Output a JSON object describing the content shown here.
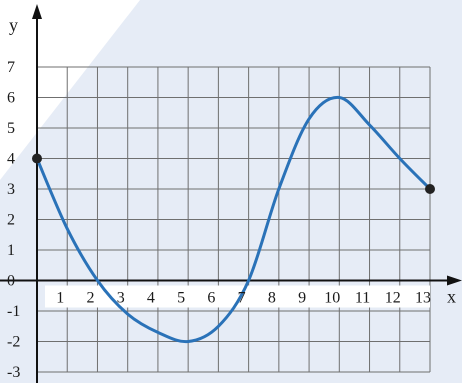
{
  "chart_data": {
    "type": "line",
    "xlabel": "x",
    "ylabel": "y",
    "xlim": [
      0,
      13
    ],
    "ylim": [
      -3,
      7
    ],
    "x_ticks": [
      1,
      2,
      3,
      4,
      5,
      6,
      7,
      8,
      9,
      10,
      11,
      12,
      13
    ],
    "x_tick_labels": [
      "1",
      "2",
      "3",
      "4",
      "5",
      "6",
      "7",
      "8",
      "9",
      "10",
      "11",
      "12",
      "13"
    ],
    "y_ticks": [
      7,
      6,
      5,
      4,
      3,
      2,
      1,
      0,
      -1,
      -2,
      -3
    ],
    "y_tick_labels": [
      "7",
      "6",
      "5",
      "4",
      "3",
      "2",
      "1",
      "0",
      "-1",
      "-2",
      "-3"
    ],
    "grid": true,
    "series": [
      {
        "color": "#2a72b8",
        "curve": "smooth",
        "points": [
          {
            "x": 0,
            "y": 4
          },
          {
            "x": 1,
            "y": 1.7
          },
          {
            "x": 2,
            "y": 0
          },
          {
            "x": 3,
            "y": -1.1
          },
          {
            "x": 4,
            "y": -1.7
          },
          {
            "x": 5,
            "y": -2
          },
          {
            "x": 6,
            "y": -1.5
          },
          {
            "x": 7,
            "y": 0
          },
          {
            "x": 8,
            "y": 3
          },
          {
            "x": 9,
            "y": 5.3
          },
          {
            "x": 10,
            "y": 6
          },
          {
            "x": 11,
            "y": 5.1
          },
          {
            "x": 12,
            "y": 4
          },
          {
            "x": 13,
            "y": 3
          }
        ],
        "endpoints": [
          {
            "x": 0,
            "y": 4
          },
          {
            "x": 13,
            "y": 3
          }
        ]
      }
    ]
  },
  "colors": {
    "grid": "#6f6f6f",
    "axis": "#111111",
    "curve": "#2a72b8",
    "background_shape": "#e6ecf6"
  }
}
